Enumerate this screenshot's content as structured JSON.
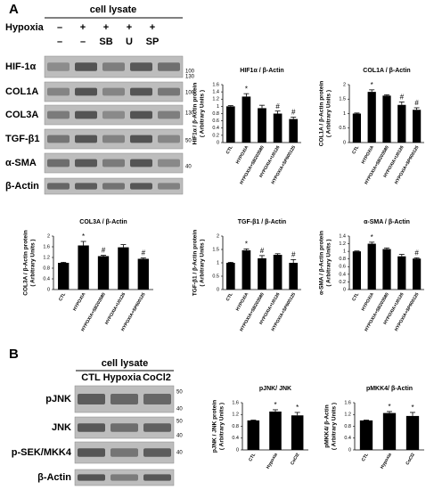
{
  "figure": {
    "panel_a": {
      "label": "A",
      "header": "cell lysate",
      "row_label": "Hypoxia",
      "rows": [
        [
          "–",
          "+",
          "+",
          "+",
          "+"
        ],
        [
          "–",
          "–",
          "SB",
          "U",
          "SP"
        ]
      ],
      "blots": [
        "HIF-1α",
        "COL1A",
        "COL3A",
        "TGF-β1",
        "α-SMA",
        "β-Actin"
      ],
      "mw": [
        "100",
        "130",
        "100",
        "130",
        "50",
        "40"
      ]
    },
    "panel_b": {
      "label": "B",
      "header": "cell lysate",
      "lanes": [
        "CTL",
        "Hypoxia",
        "CoCl2"
      ],
      "blots": [
        "pJNK",
        "JNK",
        "p-SEK/MKK4",
        "β-Actin"
      ],
      "mw": [
        "50",
        "40",
        "50",
        "40",
        "40"
      ]
    }
  },
  "chart_data": [
    {
      "type": "bar",
      "title": "HIF1α / β-Actin",
      "ylabel": [
        "HIF1α / β-Actin protein",
        "( Arbitrary Units )"
      ],
      "categories": [
        "CTL",
        "HYPOXIA",
        "HYPOXIA+SB203580",
        "HYPOXIA+U0126",
        "HYPOXIA+SP600125"
      ],
      "values": [
        1.0,
        1.27,
        0.95,
        0.8,
        0.65
      ],
      "errors": [
        0.02,
        0.08,
        0.08,
        0.07,
        0.05
      ],
      "markers": [
        null,
        "*",
        null,
        "#",
        "#"
      ],
      "color": "#000000",
      "ylim": [
        0,
        1.6
      ],
      "yticks": [
        0,
        0.2,
        0.4,
        0.6,
        0.8,
        1,
        1.2,
        1.4,
        1.6
      ]
    },
    {
      "type": "bar",
      "title": "COL1A / β-Actin",
      "ylabel": [
        "COL1A / β-Actin protein",
        "( Arbitrary Units )"
      ],
      "categories": [
        "CTL",
        "HYPOXIA",
        "HYPOXIA+SB203580",
        "HYPOXIA+U0126",
        "HYPOXIA+SP600125"
      ],
      "values": [
        1.0,
        1.75,
        1.62,
        1.3,
        1.13
      ],
      "errors": [
        0.02,
        0.07,
        0.03,
        0.1,
        0.07
      ],
      "markers": [
        null,
        "*",
        null,
        "#",
        "#"
      ],
      "color": "#000000",
      "ylim": [
        0,
        2
      ],
      "yticks": [
        0,
        0.5,
        1,
        1.5,
        2
      ]
    },
    {
      "type": "bar",
      "title": "COL3A / β-Actin",
      "ylabel": [
        "COL3A / β-Actin protein",
        "( Arbitrary Units )"
      ],
      "categories": [
        "CTL",
        "HYPOXIA",
        "HYPOXIA+SB203580",
        "HYPOXIA+U0126",
        "HYPOXIA+SP600125"
      ],
      "values": [
        1.0,
        1.65,
        1.25,
        1.58,
        1.15
      ],
      "errors": [
        0.02,
        0.15,
        0.03,
        0.1,
        0.03
      ],
      "markers": [
        null,
        "*",
        "#",
        null,
        "#"
      ],
      "color": "#000000",
      "ylim": [
        0,
        2
      ],
      "yticks": [
        0,
        0.4,
        0.8,
        1.2,
        1.6,
        2
      ]
    },
    {
      "type": "bar",
      "title": "TGF-β1 / β-Actin",
      "ylabel": [
        "TGF-β1 / β-Actin protein",
        "( Arbitrary Units )"
      ],
      "categories": [
        "CTL",
        "HYPOXIA",
        "HYPOXIA+SB203580",
        "HYPOXIA+U0126",
        "HYPOXIA+SP600125"
      ],
      "values": [
        1.0,
        1.47,
        1.17,
        1.3,
        1.0
      ],
      "errors": [
        0.02,
        0.05,
        0.1,
        0.04,
        0.12
      ],
      "markers": [
        null,
        "*",
        "#",
        null,
        "#"
      ],
      "color": "#000000",
      "ylim": [
        0,
        2
      ],
      "yticks": [
        0,
        0.5,
        1,
        1.5,
        2
      ]
    },
    {
      "type": "bar",
      "title": "α-SMA / β-Actin",
      "ylabel": [
        "α-SMA / β-Actin protein",
        "( Arbitrary Units )"
      ],
      "categories": [
        "CTL",
        "HYPOXIA",
        "HYPOXIA+SB203580",
        "HYPOXIA+U0126",
        "HYPOXIA+SP600125"
      ],
      "values": [
        1.0,
        1.2,
        1.06,
        0.87,
        0.81
      ],
      "errors": [
        0.01,
        0.04,
        0.03,
        0.05,
        0.02
      ],
      "markers": [
        null,
        "*",
        null,
        null,
        "#"
      ],
      "color": "#000000",
      "ylim": [
        0,
        1.4
      ],
      "yticks": [
        0,
        0.2,
        0.4,
        0.6,
        0.8,
        1,
        1.2,
        1.4
      ]
    },
    {
      "type": "bar",
      "title": "pJNK/ JNK",
      "ylabel": [
        "pJNK / JNK protein",
        "( Arbitrary Units )"
      ],
      "categories": [
        "CTL",
        "Hypoxia",
        "CoCl2"
      ],
      "values": [
        1.0,
        1.3,
        1.17
      ],
      "errors": [
        0.01,
        0.06,
        0.1
      ],
      "markers": [
        null,
        "*",
        "*"
      ],
      "color": "#000000",
      "ylim": [
        0,
        1.6
      ],
      "yticks": [
        0,
        0.4,
        0.8,
        1.2,
        1.6
      ]
    },
    {
      "type": "bar",
      "title": "pMKK4/ β-Actin",
      "ylabel": [
        "pMKK4/ β-Actin",
        "( Arbitrary Units )"
      ],
      "categories": [
        "CTL",
        "Hypoxia",
        "CoCl2"
      ],
      "values": [
        1.0,
        1.25,
        1.15
      ],
      "errors": [
        0.01,
        0.05,
        0.12
      ],
      "markers": [
        null,
        "*",
        "*"
      ],
      "color": "#000000",
      "ylim": [
        0,
        1.6
      ],
      "yticks": [
        0,
        0.4,
        0.8,
        1.2,
        1.6
      ]
    }
  ]
}
